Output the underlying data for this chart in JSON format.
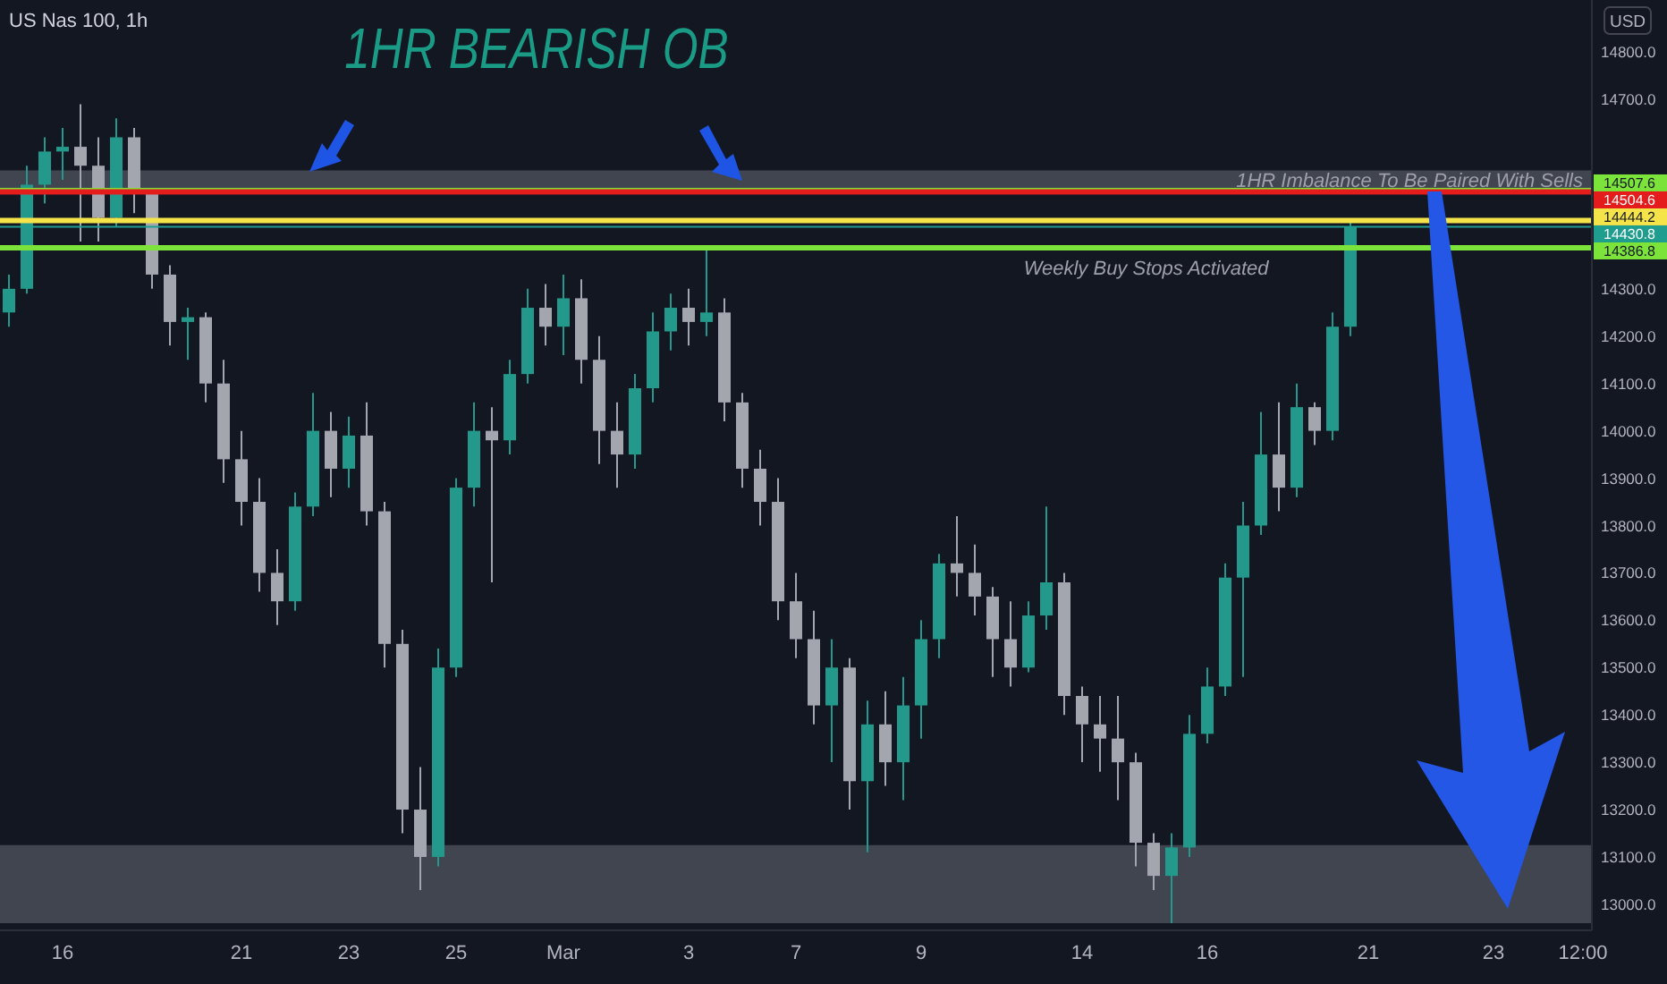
{
  "chart_data": {
    "type": "candlestick",
    "title": "US Nas 100, 1h",
    "categories": [
      null,
      null,
      null,
      "16",
      null,
      null,
      null,
      null,
      null,
      null,
      null,
      null,
      null,
      "21",
      null,
      null,
      null,
      null,
      null,
      "23",
      null,
      null,
      null,
      null,
      null,
      "25",
      null,
      null,
      null,
      null,
      null,
      "Mar",
      null,
      null,
      null,
      null,
      null,
      null,
      "3",
      null,
      null,
      null,
      null,
      null,
      "7",
      null,
      null,
      null,
      null,
      null,
      null,
      "9",
      null,
      null,
      null,
      null,
      null,
      null,
      null,
      null,
      "14",
      null,
      null,
      null,
      null,
      null,
      null,
      "16",
      null,
      null,
      null,
      null,
      null,
      null,
      null,
      null,
      "21",
      null,
      null,
      null,
      null,
      null,
      null,
      "23",
      null,
      null,
      null,
      null,
      "12:00"
    ],
    "ohlc": [
      [
        14250,
        14330,
        14220,
        14300
      ],
      [
        14300,
        14560,
        14290,
        14520
      ],
      [
        14520,
        14620,
        14480,
        14590
      ],
      [
        14590,
        14640,
        14530,
        14600
      ],
      [
        14600,
        14690,
        14400,
        14560
      ],
      [
        14560,
        14620,
        14400,
        14450
      ],
      [
        14450,
        14660,
        14430,
        14620
      ],
      [
        14620,
        14640,
        14460,
        14500
      ],
      [
        14500,
        14510,
        14300,
        14330
      ],
      [
        14330,
        14350,
        14180,
        14230
      ],
      [
        14230,
        14260,
        14150,
        14240
      ],
      [
        14240,
        14250,
        14060,
        14100
      ],
      [
        14100,
        14150,
        13890,
        13940
      ],
      [
        13940,
        14000,
        13800,
        13850
      ],
      [
        13850,
        13900,
        13660,
        13700
      ],
      [
        13700,
        13750,
        13590,
        13640
      ],
      [
        13640,
        13870,
        13620,
        13840
      ],
      [
        13840,
        14080,
        13820,
        14000
      ],
      [
        14000,
        14040,
        13860,
        13920
      ],
      [
        13920,
        14030,
        13880,
        13990
      ],
      [
        13990,
        14060,
        13800,
        13830
      ],
      [
        13830,
        13850,
        13500,
        13550
      ],
      [
        13550,
        13580,
        13150,
        13200
      ],
      [
        13200,
        13290,
        13030,
        13100
      ],
      [
        13100,
        13540,
        13080,
        13500
      ],
      [
        13500,
        13900,
        13480,
        13880
      ],
      [
        13880,
        14060,
        13840,
        14000
      ],
      [
        14000,
        14050,
        13680,
        13980
      ],
      [
        13980,
        14150,
        13950,
        14120
      ],
      [
        14120,
        14300,
        14100,
        14260
      ],
      [
        14260,
        14310,
        14180,
        14220
      ],
      [
        14220,
        14330,
        14160,
        14280
      ],
      [
        14280,
        14320,
        14100,
        14150
      ],
      [
        14150,
        14200,
        13930,
        14000
      ],
      [
        14000,
        14060,
        13880,
        13950
      ],
      [
        13950,
        14120,
        13920,
        14090
      ],
      [
        14090,
        14250,
        14060,
        14210
      ],
      [
        14210,
        14290,
        14170,
        14260
      ],
      [
        14260,
        14300,
        14180,
        14230
      ],
      [
        14230,
        14390,
        14200,
        14250
      ],
      [
        14250,
        14280,
        14020,
        14060
      ],
      [
        14060,
        14080,
        13880,
        13920
      ],
      [
        13920,
        13960,
        13800,
        13850
      ],
      [
        13850,
        13900,
        13600,
        13640
      ],
      [
        13640,
        13700,
        13520,
        13560
      ],
      [
        13560,
        13620,
        13380,
        13420
      ],
      [
        13420,
        13560,
        13300,
        13500
      ],
      [
        13500,
        13520,
        13200,
        13260
      ],
      [
        13260,
        13430,
        13110,
        13380
      ],
      [
        13380,
        13450,
        13250,
        13300
      ],
      [
        13300,
        13480,
        13220,
        13420
      ],
      [
        13420,
        13600,
        13350,
        13560
      ],
      [
        13560,
        13740,
        13520,
        13720
      ],
      [
        13720,
        13820,
        13650,
        13700
      ],
      [
        13700,
        13760,
        13610,
        13650
      ],
      [
        13650,
        13670,
        13480,
        13560
      ],
      [
        13560,
        13640,
        13460,
        13500
      ],
      [
        13500,
        13640,
        13490,
        13610
      ],
      [
        13610,
        13840,
        13580,
        13680
      ],
      [
        13680,
        13700,
        13400,
        13440
      ],
      [
        13440,
        13460,
        13300,
        13380
      ],
      [
        13380,
        13440,
        13280,
        13350
      ],
      [
        13350,
        13440,
        13220,
        13300
      ],
      [
        13300,
        13320,
        13080,
        13130
      ],
      [
        13130,
        13150,
        13030,
        13060
      ],
      [
        13060,
        13150,
        12960,
        13120
      ],
      [
        13120,
        13400,
        13100,
        13360
      ],
      [
        13360,
        13500,
        13340,
        13460
      ],
      [
        13460,
        13720,
        13440,
        13690
      ],
      [
        13690,
        13850,
        13480,
        13800
      ],
      [
        13800,
        14040,
        13780,
        13950
      ],
      [
        13950,
        14060,
        13830,
        13880
      ],
      [
        13880,
        14100,
        13860,
        14050
      ],
      [
        14050,
        14060,
        13970,
        14000
      ],
      [
        14000,
        14250,
        13980,
        14220
      ],
      [
        14220,
        14440,
        14200,
        14430.8
      ],
      null,
      null,
      null,
      null,
      null,
      null,
      null,
      null,
      null,
      null,
      null,
      null,
      null
    ],
    "colors": [
      "#22998b",
      "#22998b",
      "#22998b",
      "#22998b",
      "#a3a6ae",
      "#a3a6ae",
      "#22998b",
      "#a3a6ae",
      "#a3a6ae",
      "#a3a6ae",
      "#22998b",
      "#a3a6ae",
      "#a3a6ae",
      "#a3a6ae",
      "#a3a6ae",
      "#a3a6ae",
      "#22998b",
      "#22998b",
      "#a3a6ae",
      "#22998b",
      "#a3a6ae",
      "#a3a6ae",
      "#a3a6ae",
      "#a3a6ae",
      "#22998b",
      "#22998b",
      "#22998b",
      "#a3a6ae",
      "#22998b",
      "#22998b",
      "#a3a6ae",
      "#22998b",
      "#a3a6ae",
      "#a3a6ae",
      "#a3a6ae",
      "#22998b",
      "#22998b",
      "#22998b",
      "#a3a6ae",
      "#22998b",
      "#a3a6ae",
      "#a3a6ae",
      "#a3a6ae",
      "#a3a6ae",
      "#a3a6ae",
      "#a3a6ae",
      "#22998b",
      "#a3a6ae",
      "#22998b",
      "#a3a6ae",
      "#22998b",
      "#22998b",
      "#22998b",
      "#a3a6ae",
      "#a3a6ae",
      "#a3a6ae",
      "#a3a6ae",
      "#22998b",
      "#22998b",
      "#a3a6ae",
      "#a3a6ae",
      "#a3a6ae",
      "#a3a6ae",
      "#a3a6ae",
      "#a3a6ae",
      "#22998b",
      "#22998b",
      "#22998b",
      "#22998b",
      "#22998b",
      "#22998b",
      "#a3a6ae",
      "#22998b",
      "#a3a6ae",
      "#22998b",
      "#22998b",
      null,
      null,
      null,
      null,
      null,
      null,
      null,
      null,
      null,
      null,
      null,
      null,
      null
    ],
    "ylim": [
      12945,
      14910
    ],
    "yticks": [
      {
        "value": 13000,
        "label": "13000.0"
      },
      {
        "value": 13100,
        "label": "13100.0"
      },
      {
        "value": 13200,
        "label": "13200.0"
      },
      {
        "value": 13300,
        "label": "13300.0"
      },
      {
        "value": 13400,
        "label": "13400.0"
      },
      {
        "value": 13500,
        "label": "13500.0"
      },
      {
        "value": 13600,
        "label": "13600.0"
      },
      {
        "value": 13700,
        "label": "13700.0"
      },
      {
        "value": 13800,
        "label": "13800.0"
      },
      {
        "value": 13900,
        "label": "13900.0"
      },
      {
        "value": 14000,
        "label": "14000.0"
      },
      {
        "value": 14100,
        "label": "14100.0"
      },
      {
        "value": 14200,
        "label": "14200.0"
      },
      {
        "value": 14300,
        "label": "14300.0"
      },
      {
        "value": 14700,
        "label": "14700.0"
      },
      {
        "value": 14800,
        "label": "14800.0"
      }
    ],
    "ref_lines": [
      {
        "axis": "y",
        "value": 14507.6,
        "label": "14507.6",
        "color": "#7be33a"
      },
      {
        "axis": "y",
        "value": 14504.6,
        "label": "14504.6",
        "color": "#e51c1c"
      },
      {
        "axis": "y",
        "value": 14444.2,
        "label": "14444.2",
        "color": "#f5e34a"
      },
      {
        "axis": "y",
        "value": 14430.8,
        "label": "14430.8",
        "color": "#1f9e8f"
      },
      {
        "axis": "y",
        "value": 14386.8,
        "label": "14386.8",
        "color": "#7be33a"
      }
    ],
    "bands": [
      {
        "axis": "y",
        "from": 14510,
        "to": 14550,
        "label": "1HR Imbalance To Be Paired With Sells",
        "color": "#4a4e58"
      },
      {
        "axis": "y",
        "from": 12960,
        "to": 13125,
        "color": "#4a4e58"
      }
    ],
    "annotations": [
      "1HR BEARISH OB",
      "USD",
      {
        "text": "Weekly Buy Stops Activated",
        "y": 14386.8
      }
    ]
  }
}
